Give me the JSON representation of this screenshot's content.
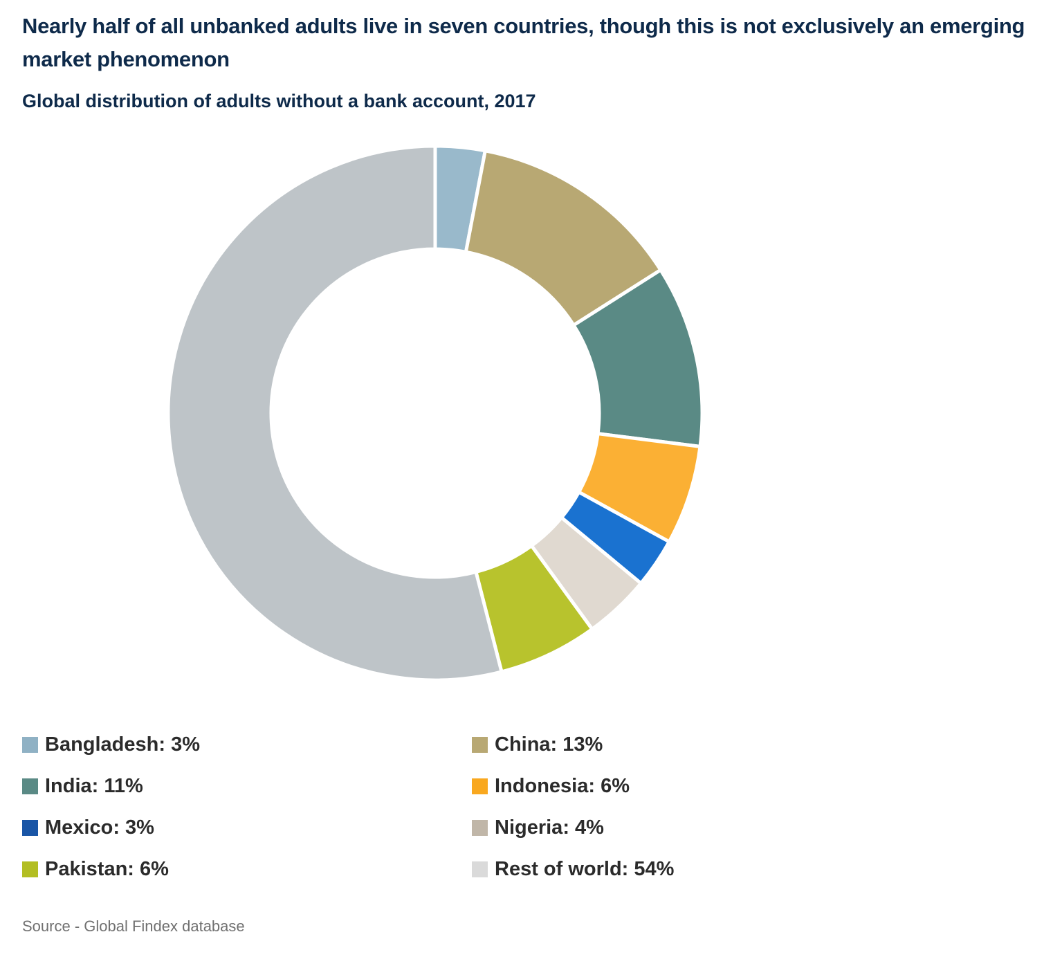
{
  "title": "Nearly half of all unbanked adults live in seven countries, though this is not exclusively an emerging market phenomenon",
  "subtitle": "Global distribution of adults without a bank account, 2017",
  "source": "Source - Global Findex database",
  "chart_data": {
    "type": "pie",
    "donut": true,
    "unit": "%",
    "slices": [
      {
        "name": "Bangladesh",
        "value": 3,
        "color": "#99b9cb",
        "legend_label": "Bangladesh: 3%",
        "legend_color": "#8fb1c4"
      },
      {
        "name": "China",
        "value": 13,
        "color": "#b8a873",
        "legend_label": "China: 13%",
        "legend_color": "#b8a873"
      },
      {
        "name": "India",
        "value": 11,
        "color": "#5a8a85",
        "legend_label": "India: 11%",
        "legend_color": "#5a8a85"
      },
      {
        "name": "Indonesia",
        "value": 6,
        "color": "#fbb034",
        "legend_label": "Indonesia: 6%",
        "legend_color": "#f9a81f"
      },
      {
        "name": "Mexico",
        "value": 3,
        "color": "#1a72d0",
        "legend_label": "Mexico: 3%",
        "legend_color": "#1955a6"
      },
      {
        "name": "Nigeria",
        "value": 4,
        "color": "#e0d9d0",
        "legend_label": "Nigeria: 4%",
        "legend_color": "#c0b6a8"
      },
      {
        "name": "Pakistan",
        "value": 6,
        "color": "#b8c32d",
        "legend_label": "Pakistan: 6%",
        "legend_color": "#b3be22"
      },
      {
        "name": "Rest of world",
        "value": 54,
        "color": "#bec4c8",
        "legend_label": "Rest of world: 54%",
        "legend_color": "#dadada"
      }
    ],
    "legend": "bottom, two columns"
  }
}
